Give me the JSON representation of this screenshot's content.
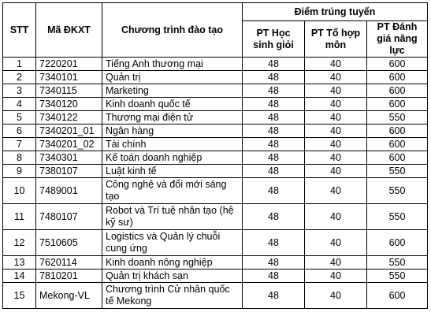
{
  "headers": {
    "stt": "STT",
    "code": "Mã ĐKXT",
    "program": "Chương trình đào tạo",
    "score_group": "Điểm trúng tuyển",
    "pt_hsg": "PT Học sinh giỏi",
    "pt_thm": "PT Tổ hợp môn",
    "pt_dgnl": "PT Đánh giá năng lực"
  },
  "rows": [
    {
      "stt": "1",
      "code": "7220201",
      "program": "Tiếng Anh thương mại",
      "hsg": "48",
      "thm": "40",
      "dgnl": "600"
    },
    {
      "stt": "2",
      "code": "7340101",
      "program": "Quản trị",
      "hsg": "48",
      "thm": "40",
      "dgnl": "600"
    },
    {
      "stt": "3",
      "code": "7340115",
      "program": "Marketing",
      "hsg": "48",
      "thm": "40",
      "dgnl": "600"
    },
    {
      "stt": "4",
      "code": "7340120",
      "program": "Kinh doanh quốc tế",
      "hsg": "48",
      "thm": "40",
      "dgnl": "600"
    },
    {
      "stt": "5",
      "code": "7340122",
      "program": "Thương mại điện tử",
      "hsg": "48",
      "thm": "40",
      "dgnl": "550"
    },
    {
      "stt": "6",
      "code": "7340201_01",
      "program": "Ngân hàng",
      "hsg": "48",
      "thm": "40",
      "dgnl": "600"
    },
    {
      "stt": "7",
      "code": "7340201_02",
      "program": "Tài chính",
      "hsg": "48",
      "thm": "40",
      "dgnl": "600"
    },
    {
      "stt": "8",
      "code": "7340301",
      "program": "Kế toán doanh nghiệp",
      "hsg": "48",
      "thm": "40",
      "dgnl": "600"
    },
    {
      "stt": "9",
      "code": "7380107",
      "program": "Luật kinh tế",
      "hsg": "48",
      "thm": "40",
      "dgnl": "550"
    },
    {
      "stt": "10",
      "code": "7489001",
      "program": "Công nghệ và đổi mới sáng tạo",
      "hsg": "48",
      "thm": "40",
      "dgnl": "550"
    },
    {
      "stt": "11",
      "code": "7480107",
      "program": "Robot và Trí tuệ nhân tạo (hệ kỹ sư)",
      "hsg": "48",
      "thm": "40",
      "dgnl": "550"
    },
    {
      "stt": "12",
      "code": "7510605",
      "program": "Logistics và Quản lý chuỗi cung ứng",
      "hsg": "48",
      "thm": "40",
      "dgnl": "600"
    },
    {
      "stt": "13",
      "code": "7620114",
      "program": "Kinh doanh nông nghiệp",
      "hsg": "48",
      "thm": "40",
      "dgnl": "550"
    },
    {
      "stt": "14",
      "code": "7810201",
      "program": "Quản trị khách sạn",
      "hsg": "48",
      "thm": "40",
      "dgnl": "550"
    },
    {
      "stt": "15",
      "code": "Mekong-VL",
      "program": "Chương trình Cử nhân quốc tế Mekong",
      "hsg": "48",
      "thm": "40",
      "dgnl": "600"
    }
  ]
}
